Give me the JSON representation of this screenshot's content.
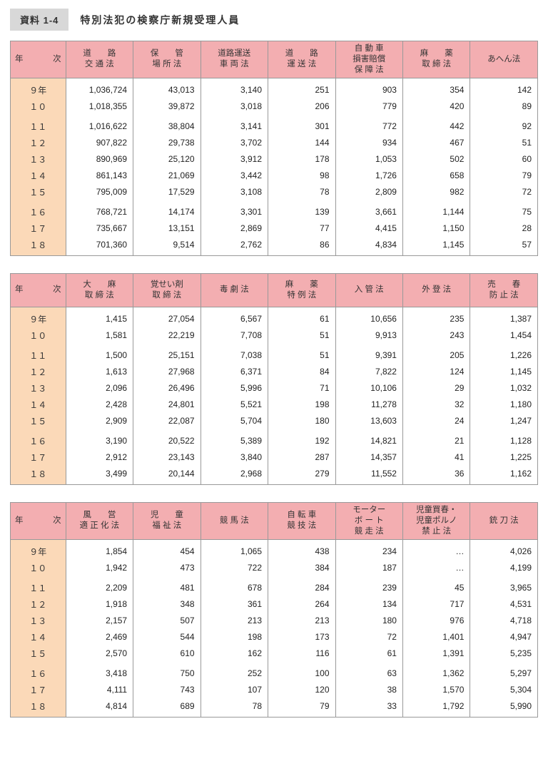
{
  "title_tag": "資料 1-4",
  "title_text": "特別法犯の検察庁新規受理人員",
  "year_header": "年　　次",
  "years": [
    "９年",
    "１０",
    "１１",
    "１２",
    "１３",
    "１４",
    "１５",
    "１６",
    "１７",
    "１８"
  ],
  "group_breaks": [
    0,
    2,
    7
  ],
  "tables": [
    {
      "headers": [
        "道　　路\n交 通 法",
        "保　　管\n場 所 法",
        "道路運送\n車 両 法",
        "道　　路\n運 送 法",
        "自 動 車\n損害賠償\n保 障 法",
        "麻　　薬\n取 締 法",
        "あへん法"
      ],
      "rows": [
        [
          "1,036,724",
          "43,013",
          "3,140",
          "251",
          "903",
          "354",
          "142"
        ],
        [
          "1,018,355",
          "39,872",
          "3,018",
          "206",
          "779",
          "420",
          "89"
        ],
        [
          "1,016,622",
          "38,804",
          "3,141",
          "301",
          "772",
          "442",
          "92"
        ],
        [
          "907,822",
          "29,738",
          "3,702",
          "144",
          "934",
          "467",
          "51"
        ],
        [
          "890,969",
          "25,120",
          "3,912",
          "178",
          "1,053",
          "502",
          "60"
        ],
        [
          "861,143",
          "21,069",
          "3,442",
          "98",
          "1,726",
          "658",
          "79"
        ],
        [
          "795,009",
          "17,529",
          "3,108",
          "78",
          "2,809",
          "982",
          "72"
        ],
        [
          "768,721",
          "14,174",
          "3,301",
          "139",
          "3,661",
          "1,144",
          "75"
        ],
        [
          "735,667",
          "13,151",
          "2,869",
          "77",
          "4,415",
          "1,150",
          "28"
        ],
        [
          "701,360",
          "9,514",
          "2,762",
          "86",
          "4,834",
          "1,145",
          "57"
        ]
      ]
    },
    {
      "headers": [
        "大　　麻\n取 締 法",
        "覚せい剤\n取 締 法",
        "毒 劇 法",
        "麻　　薬\n特 例 法",
        "入 管 法",
        "外 登 法",
        "売　　春\n防 止 法"
      ],
      "rows": [
        [
          "1,415",
          "27,054",
          "6,567",
          "61",
          "10,656",
          "235",
          "1,387"
        ],
        [
          "1,581",
          "22,219",
          "7,708",
          "51",
          "9,913",
          "243",
          "1,454"
        ],
        [
          "1,500",
          "25,151",
          "7,038",
          "51",
          "9,391",
          "205",
          "1,226"
        ],
        [
          "1,613",
          "27,968",
          "6,371",
          "84",
          "7,822",
          "124",
          "1,145"
        ],
        [
          "2,096",
          "26,496",
          "5,996",
          "71",
          "10,106",
          "29",
          "1,032"
        ],
        [
          "2,428",
          "24,801",
          "5,521",
          "198",
          "11,278",
          "32",
          "1,180"
        ],
        [
          "2,909",
          "22,087",
          "5,704",
          "180",
          "13,603",
          "24",
          "1,247"
        ],
        [
          "3,190",
          "20,522",
          "5,389",
          "192",
          "14,821",
          "21",
          "1,128"
        ],
        [
          "2,912",
          "23,143",
          "3,840",
          "287",
          "14,357",
          "41",
          "1,225"
        ],
        [
          "3,499",
          "20,144",
          "2,968",
          "279",
          "11,552",
          "36",
          "1,162"
        ]
      ]
    },
    {
      "headers": [
        "風　　営\n適 正 化 法",
        "児　　童\n福 祉 法",
        "競 馬 法",
        "自 転 車\n競 技 法",
        "モーター\nボ ー ト\n競 走 法",
        "児童買春・\n児童ポルノ\n禁 止 法",
        "銃 刀 法"
      ],
      "rows": [
        [
          "1,854",
          "454",
          "1,065",
          "438",
          "234",
          "…",
          "4,026"
        ],
        [
          "1,942",
          "473",
          "722",
          "384",
          "187",
          "…",
          "4,199"
        ],
        [
          "2,209",
          "481",
          "678",
          "284",
          "239",
          "45",
          "3,965"
        ],
        [
          "1,918",
          "348",
          "361",
          "264",
          "134",
          "717",
          "4,531"
        ],
        [
          "2,157",
          "507",
          "213",
          "213",
          "180",
          "976",
          "4,718"
        ],
        [
          "2,469",
          "544",
          "198",
          "173",
          "72",
          "1,401",
          "4,947"
        ],
        [
          "2,570",
          "610",
          "162",
          "116",
          "61",
          "1,391",
          "5,235"
        ],
        [
          "3,418",
          "750",
          "252",
          "100",
          "63",
          "1,362",
          "5,297"
        ],
        [
          "4,111",
          "743",
          "107",
          "120",
          "38",
          "1,570",
          "5,304"
        ],
        [
          "4,814",
          "689",
          "78",
          "79",
          "33",
          "1,792",
          "5,990"
        ]
      ]
    }
  ],
  "style": {
    "header_bg": "#f3aeb1",
    "year_bg": "#fbd9b8",
    "border_color": "#999999",
    "background": "#ffffff",
    "title_tag_bg": "#d8d8d8",
    "font_size_body": 12,
    "font_size_header": 11.5,
    "font_size_title": 14
  }
}
